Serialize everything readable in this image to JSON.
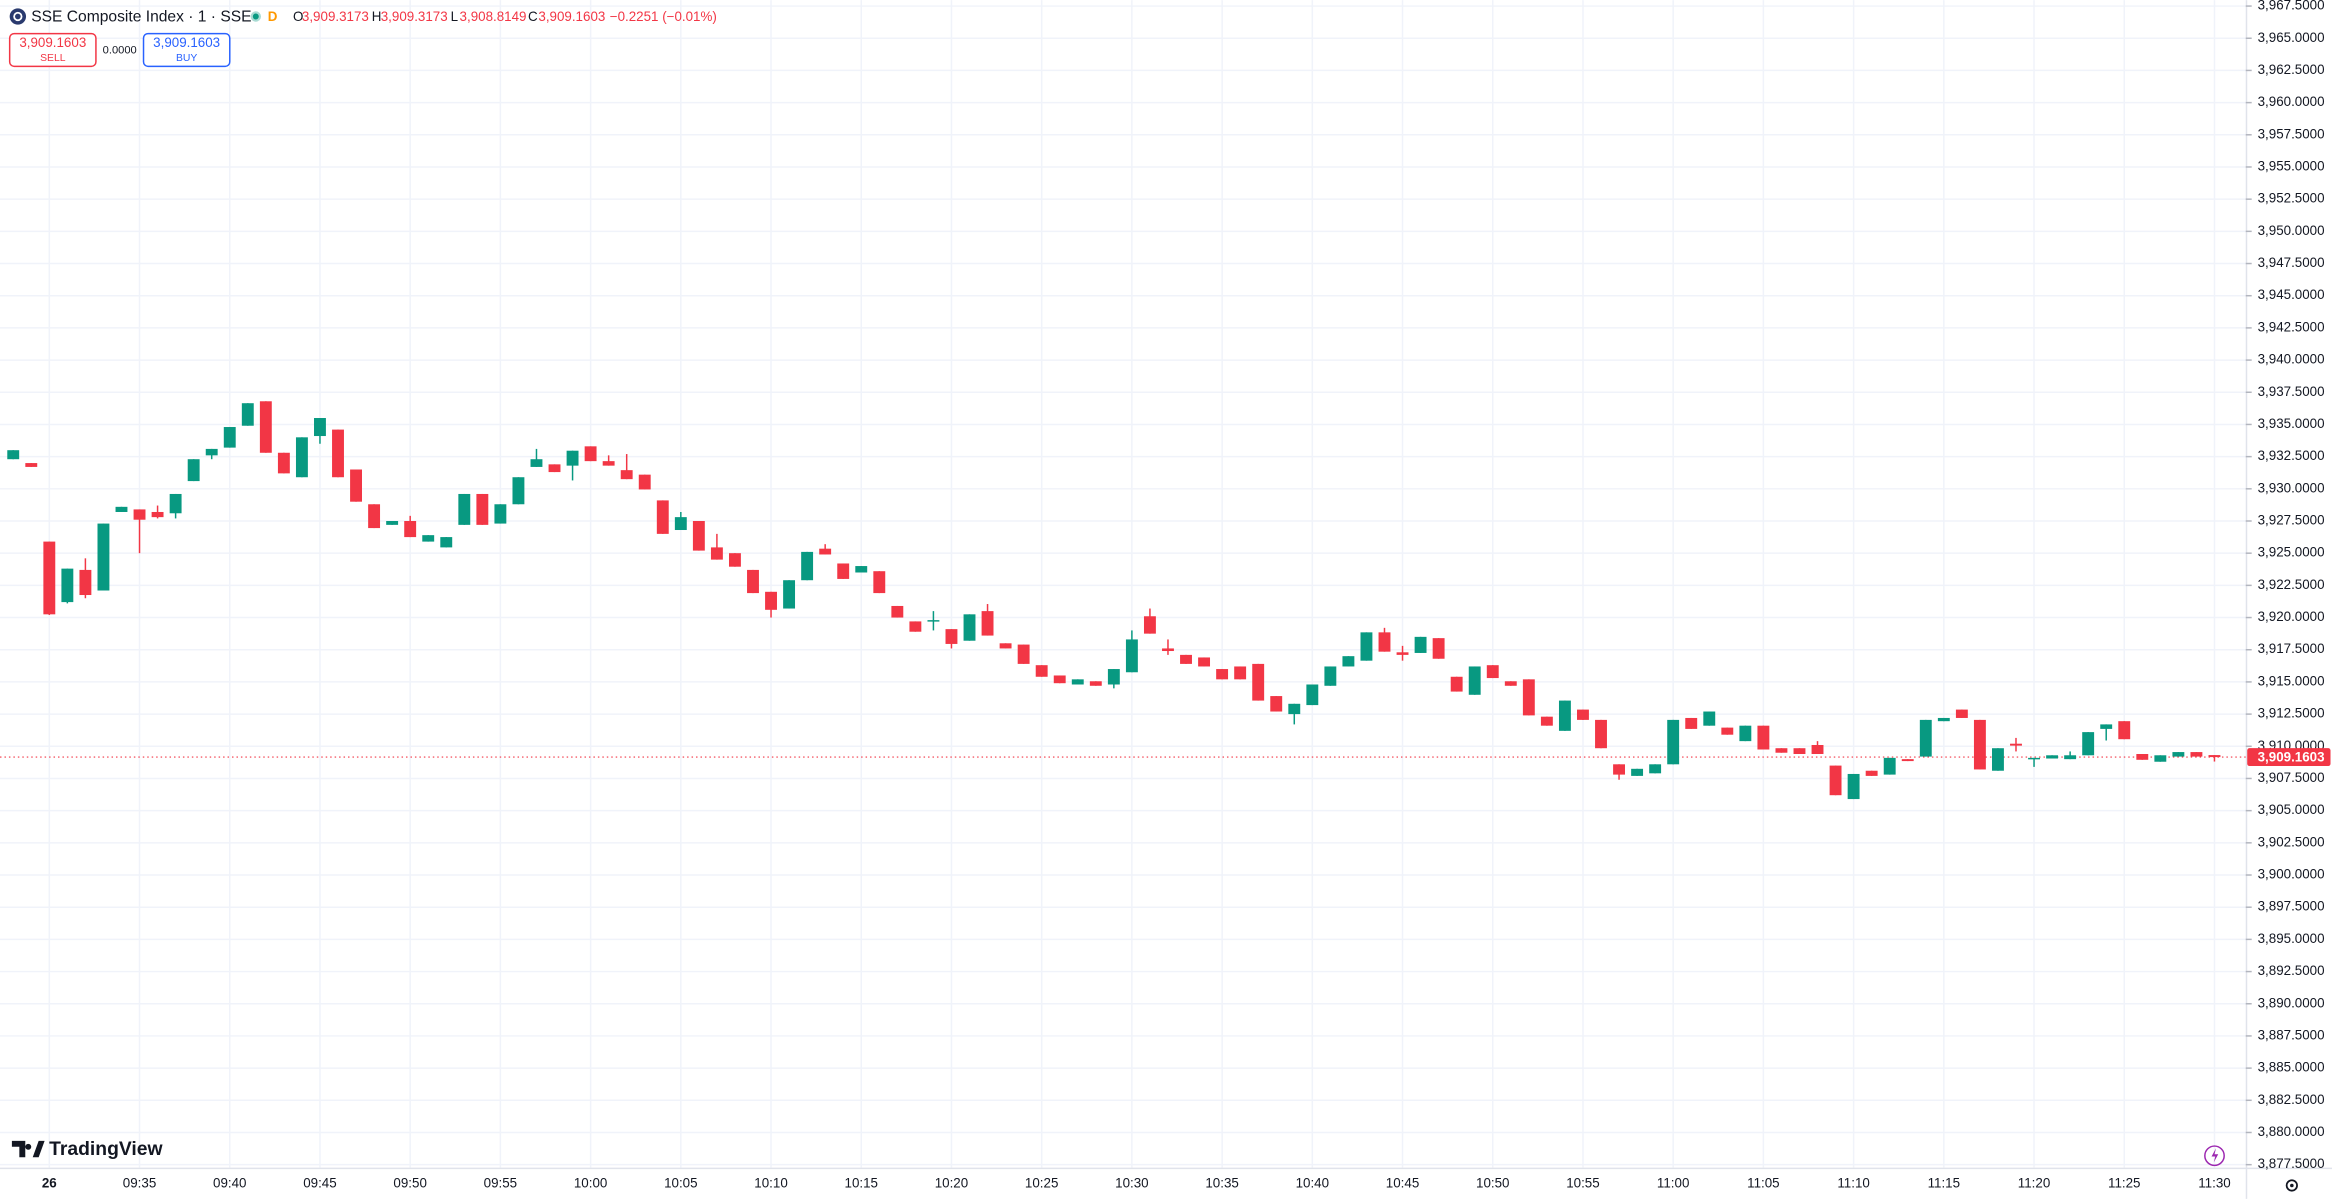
{
  "header": {
    "symbol": "SSE Composite Index · 1 · SSE",
    "status": "D",
    "ohlc": [
      {
        "label": "O",
        "value": "3,909.3173"
      },
      {
        "label": "H",
        "value": "3,909.3173"
      },
      {
        "label": "L",
        "value": "3,908.8149"
      },
      {
        "label": "C",
        "value": "3,909.1603"
      }
    ],
    "change": "−0.2251 (−0.01%)"
  },
  "trade": {
    "sell_price": "3,909.1603",
    "sell_label": "SELL",
    "spread": "0.0000",
    "buy_price": "3,909.1603",
    "buy_label": "BUY"
  },
  "brand": "TradingView",
  "chart_data": {
    "type": "candlestick",
    "up_color": "#089981",
    "down_color": "#f23645",
    "grid": true,
    "xlim": [
      "09:27:16",
      "11:31:44"
    ],
    "ylim": [
      3877.27,
      3967.96
    ],
    "last_price": {
      "value": 3909.1603,
      "label": "3,909.1603"
    },
    "xticks": [
      {
        "value": "09:30",
        "label": "26"
      },
      "09:35",
      "09:40",
      "09:45",
      "09:50",
      "09:55",
      "10:00",
      "10:05",
      "10:10",
      "10:15",
      "10:20",
      "10:25",
      "10:30",
      "10:35",
      "10:40",
      "10:45",
      "10:50",
      "10:55",
      "11:00",
      "11:05",
      "11:10",
      "11:15",
      "11:20",
      "11:25",
      "11:30"
    ],
    "yticks": [
      {
        "value": 3877.5,
        "label": "3,877.5000"
      },
      {
        "value": 3880,
        "label": "3,880.0000"
      },
      {
        "value": 3882.5,
        "label": "3,882.5000"
      },
      {
        "value": 3885,
        "label": "3,885.0000"
      },
      {
        "value": 3887.5,
        "label": "3,887.5000"
      },
      {
        "value": 3890,
        "label": "3,890.0000"
      },
      {
        "value": 3892.5,
        "label": "3,892.5000"
      },
      {
        "value": 3895,
        "label": "3,895.0000"
      },
      {
        "value": 3897.5,
        "label": "3,897.5000"
      },
      {
        "value": 3900,
        "label": "3,900.0000"
      },
      {
        "value": 3902.5,
        "label": "3,902.5000"
      },
      {
        "value": 3905,
        "label": "3,905.0000"
      },
      {
        "value": 3907.5,
        "label": "3,907.5000"
      },
      {
        "value": 3910,
        "label": "3,910.0000"
      },
      {
        "value": 3912.5,
        "label": "3,912.5000"
      },
      {
        "value": 3915,
        "label": "3,915.0000"
      },
      {
        "value": 3917.5,
        "label": "3,917.5000"
      },
      {
        "value": 3920,
        "label": "3,920.0000"
      },
      {
        "value": 3922.5,
        "label": "3,922.5000"
      },
      {
        "value": 3925,
        "label": "3,925.0000"
      },
      {
        "value": 3927.5,
        "label": "3,927.5000"
      },
      {
        "value": 3930,
        "label": "3,930.0000"
      },
      {
        "value": 3932.5,
        "label": "3,932.5000"
      },
      {
        "value": 3935,
        "label": "3,935.0000"
      },
      {
        "value": 3937.5,
        "label": "3,937.5000"
      },
      {
        "value": 3940,
        "label": "3,940.0000"
      },
      {
        "value": 3942.5,
        "label": "3,942.5000"
      },
      {
        "value": 3945,
        "label": "3,945.0000"
      },
      {
        "value": 3947.5,
        "label": "3,947.5000"
      },
      {
        "value": 3950,
        "label": "3,950.0000"
      },
      {
        "value": 3952.5,
        "label": "3,952.5000"
      },
      {
        "value": 3955,
        "label": "3,955.0000"
      },
      {
        "value": 3957.5,
        "label": "3,957.5000"
      },
      {
        "value": 3960,
        "label": "3,960.0000"
      },
      {
        "value": 3962.5,
        "label": "3,962.5000"
      },
      {
        "value": 3965,
        "label": "3,965.0000"
      },
      {
        "value": 3967.5,
        "label": "3,967.5000"
      }
    ],
    "x": [
      "09:28",
      "09:29",
      "09:30",
      "09:31",
      "09:32",
      "09:33",
      "09:34",
      "09:35",
      "09:36",
      "09:37",
      "09:38",
      "09:39",
      "09:40",
      "09:41",
      "09:42",
      "09:43",
      "09:44",
      "09:45",
      "09:46",
      "09:47",
      "09:48",
      "09:49",
      "09:50",
      "09:51",
      "09:52",
      "09:53",
      "09:54",
      "09:55",
      "09:56",
      "09:57",
      "09:58",
      "09:59",
      "10:00",
      "10:01",
      "10:02",
      "10:03",
      "10:04",
      "10:05",
      "10:06",
      "10:07",
      "10:08",
      "10:09",
      "10:10",
      "10:11",
      "10:12",
      "10:13",
      "10:14",
      "10:15",
      "10:16",
      "10:17",
      "10:18",
      "10:19",
      "10:20",
      "10:21",
      "10:22",
      "10:23",
      "10:24",
      "10:25",
      "10:26",
      "10:27",
      "10:28",
      "10:29",
      "10:30",
      "10:31",
      "10:32",
      "10:33",
      "10:34",
      "10:35",
      "10:36",
      "10:37",
      "10:38",
      "10:39",
      "10:40",
      "10:41",
      "10:42",
      "10:43",
      "10:44",
      "10:45",
      "10:46",
      "10:47",
      "10:48",
      "10:49",
      "10:50",
      "10:51",
      "10:52",
      "10:53",
      "10:54",
      "10:55",
      "10:56",
      "10:57",
      "10:58",
      "10:59",
      "11:00",
      "11:01",
      "11:02",
      "11:03",
      "11:04",
      "11:05",
      "11:06",
      "11:07",
      "11:08",
      "11:09",
      "11:10",
      "11:11",
      "11:12",
      "11:13",
      "11:14",
      "11:15",
      "11:16",
      "11:17",
      "11:18",
      "11:19",
      "11:20",
      "11:21",
      "11:22",
      "11:23",
      "11:24",
      "11:25",
      "11:26",
      "11:27",
      "11:28",
      "11:29",
      "11:30"
    ],
    "open": [
      3932.3,
      3932.0,
      3925.9,
      3921.2,
      3923.7,
      3922.1,
      3928.2,
      3928.4,
      3928.2,
      3928.1,
      3930.6,
      3932.6,
      3933.2,
      3934.9,
      3936.8,
      3932.8,
      3930.9,
      3934.1,
      3934.6,
      3931.5,
      3928.8,
      3927.2,
      3927.5,
      3925.9,
      3925.45,
      3927.2,
      3929.6,
      3927.3,
      3928.8,
      3931.7,
      3931.9,
      3931.8,
      3933.3,
      3932.15,
      3931.45,
      3931.1,
      3929.1,
      3926.8,
      3927.5,
      3925.45,
      3925.0,
      3923.7,
      3922.0,
      3920.7,
      3922.9,
      3925.35,
      3924.2,
      3923.5,
      3923.6,
      3920.9,
      3919.7,
      3919.7,
      3919.1,
      3918.2,
      3920.5,
      3918.0,
      3917.9,
      3916.3,
      3915.5,
      3914.8,
      3915.05,
      3914.8,
      3915.75,
      3920.1,
      3917.6,
      3917.1,
      3916.9,
      3916.0,
      3916.2,
      3916.4,
      3913.9,
      3912.5,
      3913.2,
      3914.7,
      3916.2,
      3916.65,
      3918.85,
      3917.3,
      3917.25,
      3918.4,
      3915.4,
      3914.0,
      3916.3,
      3915.05,
      3915.2,
      3912.3,
      3911.2,
      3912.85,
      3912.05,
      3908.6,
      3907.7,
      3907.9,
      3908.6,
      3912.2,
      3911.6,
      3911.45,
      3910.4,
      3911.6,
      3909.85,
      3909.85,
      3910.1,
      3908.5,
      3905.9,
      3908.1,
      3907.8,
      3909.0,
      3909.2,
      3911.95,
      3912.85,
      3912.05,
      3908.1,
      3910.2,
      3909.0,
      3909.05,
      3909.0,
      3909.3,
      3911.35,
      3911.95,
      3909.4,
      3908.8,
      3909.2,
      3909.55,
      3909.3173
    ],
    "high": [
      3933.0,
      3932.0,
      3925.9,
      3923.8,
      3924.6,
      3927.3,
      3928.6,
      3928.4,
      3928.7,
      3929.6,
      3932.3,
      3933.1,
      3934.8,
      3936.65,
      3936.8,
      3932.8,
      3934.0,
      3935.5,
      3934.6,
      3931.5,
      3928.8,
      3927.5,
      3927.9,
      3926.4,
      3926.25,
      3929.6,
      3929.6,
      3928.8,
      3930.9,
      3933.1,
      3931.9,
      3932.96,
      3933.3,
      3932.6,
      3932.7,
      3931.1,
      3929.1,
      3928.2,
      3927.5,
      3926.5,
      3925.0,
      3923.7,
      3922.0,
      3922.9,
      3925.1,
      3925.7,
      3924.2,
      3924.0,
      3923.6,
      3920.9,
      3919.7,
      3920.5,
      3919.1,
      3920.25,
      3921.05,
      3918.0,
      3917.9,
      3916.3,
      3915.5,
      3915.2,
      3915.05,
      3916.0,
      3919.0,
      3920.7,
      3918.3,
      3917.1,
      3916.9,
      3916.0,
      3916.2,
      3916.4,
      3913.9,
      3913.3,
      3914.8,
      3916.2,
      3917.0,
      3918.85,
      3919.2,
      3917.8,
      3918.5,
      3918.4,
      3915.4,
      3916.2,
      3916.3,
      3915.05,
      3915.2,
      3912.3,
      3913.55,
      3912.85,
      3912.05,
      3908.6,
      3908.25,
      3908.6,
      3912.05,
      3912.2,
      3912.7,
      3911.45,
      3911.6,
      3911.6,
      3909.85,
      3909.85,
      3910.4,
      3908.5,
      3907.85,
      3908.1,
      3909.1,
      3909.0,
      3912.05,
      3912.2,
      3912.85,
      3912.05,
      3909.85,
      3910.65,
      3909.1,
      3909.3,
      3909.6,
      3911.1,
      3911.7,
      3911.95,
      3909.4,
      3909.3,
      3909.55,
      3909.55,
      3909.3173
    ],
    "low": [
      3932.3,
      3931.7,
      3920.2,
      3921.1,
      3921.5,
      3922.1,
      3928.2,
      3925.0,
      3927.7,
      3927.7,
      3930.6,
      3932.3,
      3933.2,
      3934.9,
      3932.8,
      3931.2,
      3930.9,
      3933.5,
      3930.9,
      3929.0,
      3926.95,
      3927.2,
      3926.25,
      3925.9,
      3925.45,
      3927.2,
      3927.2,
      3927.3,
      3928.8,
      3931.7,
      3931.3,
      3930.65,
      3932.15,
      3931.8,
      3930.75,
      3929.95,
      3926.5,
      3926.8,
      3925.2,
      3924.5,
      3923.95,
      3921.9,
      3920.0,
      3920.7,
      3922.9,
      3924.9,
      3923.0,
      3923.5,
      3921.9,
      3920.0,
      3918.9,
      3919.0,
      3917.6,
      3918.2,
      3918.6,
      3917.6,
      3916.4,
      3915.4,
      3914.9,
      3914.8,
      3914.7,
      3914.5,
      3915.75,
      3918.75,
      3917.1,
      3916.4,
      3916.2,
      3915.2,
      3915.2,
      3913.55,
      3912.7,
      3911.7,
      3913.2,
      3914.7,
      3916.2,
      3916.65,
      3917.35,
      3916.65,
      3917.25,
      3916.8,
      3914.25,
      3914.0,
      3915.3,
      3914.7,
      3912.4,
      3911.6,
      3911.2,
      3912.05,
      3909.85,
      3907.4,
      3907.7,
      3907.9,
      3908.6,
      3911.35,
      3911.6,
      3910.9,
      3910.4,
      3909.75,
      3909.5,
      3909.4,
      3909.4,
      3906.2,
      3905.9,
      3907.7,
      3907.8,
      3908.85,
      3909.2,
      3911.95,
      3912.2,
      3908.2,
      3908.1,
      3909.6,
      3908.4,
      3909.05,
      3909.0,
      3909.3,
      3910.45,
      3910.55,
      3908.95,
      3908.8,
      3909.2,
      3909.2,
      3908.8149
    ],
    "close": [
      3933.0,
      3931.7,
      3920.25,
      3923.8,
      3921.75,
      3927.3,
      3928.6,
      3927.6,
      3927.8,
      3929.6,
      3932.3,
      3933.1,
      3934.8,
      3936.65,
      3932.8,
      3931.2,
      3934.0,
      3935.5,
      3930.9,
      3929.0,
      3926.95,
      3927.5,
      3926.25,
      3926.4,
      3926.25,
      3929.6,
      3927.2,
      3928.8,
      3930.9,
      3932.3,
      3931.3,
      3932.96,
      3932.15,
      3931.8,
      3930.75,
      3929.95,
      3926.5,
      3927.8,
      3925.2,
      3924.5,
      3923.95,
      3921.9,
      3920.6,
      3922.9,
      3925.1,
      3924.9,
      3923.0,
      3924.0,
      3921.9,
      3920.0,
      3918.9,
      3919.8,
      3917.95,
      3920.25,
      3918.6,
      3917.6,
      3916.4,
      3915.4,
      3914.9,
      3915.2,
      3914.7,
      3916.0,
      3918.3,
      3918.75,
      3917.4,
      3916.4,
      3916.2,
      3915.2,
      3915.2,
      3913.55,
      3912.7,
      3913.3,
      3914.8,
      3916.2,
      3917.0,
      3918.85,
      3917.35,
      3917.1,
      3918.5,
      3916.8,
      3914.25,
      3916.2,
      3915.3,
      3914.7,
      3912.4,
      3911.6,
      3913.55,
      3912.05,
      3909.85,
      3907.8,
      3908.25,
      3908.6,
      3912.05,
      3911.35,
      3912.7,
      3910.9,
      3911.6,
      3909.75,
      3909.5,
      3909.4,
      3909.4,
      3906.2,
      3907.85,
      3907.7,
      3909.1,
      3908.85,
      3912.05,
      3912.2,
      3912.2,
      3908.2,
      3909.85,
      3910.05,
      3909.1,
      3909.3,
      3909.3,
      3911.1,
      3911.7,
      3910.55,
      3908.95,
      3909.3,
      3909.55,
      3909.2,
      3909.1603
    ]
  }
}
